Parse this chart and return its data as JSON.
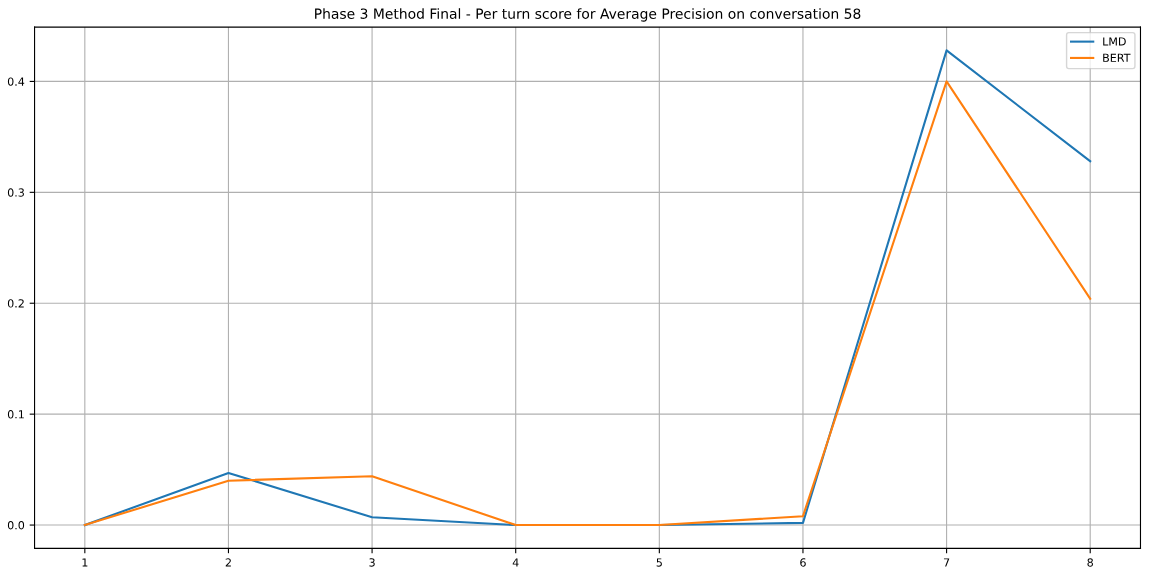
{
  "chart_data": {
    "type": "line",
    "title": "Phase 3 Method Final - Per turn score for Average Precision on conversation 58",
    "x": [
      1,
      2,
      3,
      4,
      5,
      6,
      7,
      8
    ],
    "series": [
      {
        "name": "LMD",
        "color": "#1f77b4",
        "values": [
          0.0,
          0.047,
          0.007,
          0.0,
          0.0,
          0.002,
          0.428,
          0.328
        ]
      },
      {
        "name": "BERT",
        "color": "#ff7f0e",
        "values": [
          0.0,
          0.04,
          0.044,
          0.0,
          0.0,
          0.008,
          0.4,
          0.204
        ]
      }
    ],
    "xlim": [
      0.65,
      8.35
    ],
    "xticks": [
      1,
      2,
      3,
      4,
      5,
      6,
      7,
      8
    ],
    "ylim": [
      -0.021,
      0.449
    ],
    "yticks": [
      {
        "value": 0,
        "label": "0.0"
      },
      0.1,
      0.2,
      0.3,
      0.4
    ],
    "grid": true,
    "legend": "top right",
    "marker": "none",
    "line_style": "solid"
  }
}
